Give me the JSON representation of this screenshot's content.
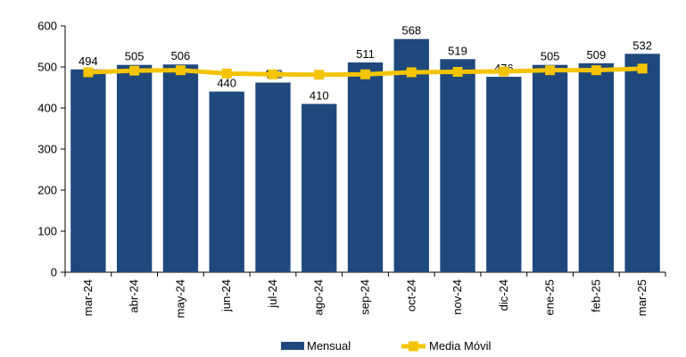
{
  "colors": {
    "bar": "#1F497D",
    "line": "#F5C400",
    "axis": "#000000"
  },
  "chart_data": {
    "type": "bar",
    "categories": [
      "mar-24",
      "abr-24",
      "may-24",
      "jun-24",
      "jul-24",
      "ago-24",
      "sep-24",
      "oct-24",
      "nov-24",
      "dic-24",
      "ene-25",
      "feb-25",
      "mar-25"
    ],
    "series": [
      {
        "name": "Mensual",
        "type": "bar",
        "values": [
          494,
          505,
          506,
          440,
          462,
          410,
          511,
          568,
          519,
          476,
          505,
          509,
          532
        ]
      },
      {
        "name": "Media Móvil",
        "type": "line",
        "values": [
          487,
          491,
          492,
          484,
          482,
          481,
          482,
          487,
          488,
          489,
          492,
          492,
          496
        ]
      }
    ],
    "ylim": [
      0,
      600
    ],
    "yticks": [
      0,
      100,
      200,
      300,
      400,
      500,
      600
    ],
    "grid": false,
    "legend": "bottom"
  }
}
